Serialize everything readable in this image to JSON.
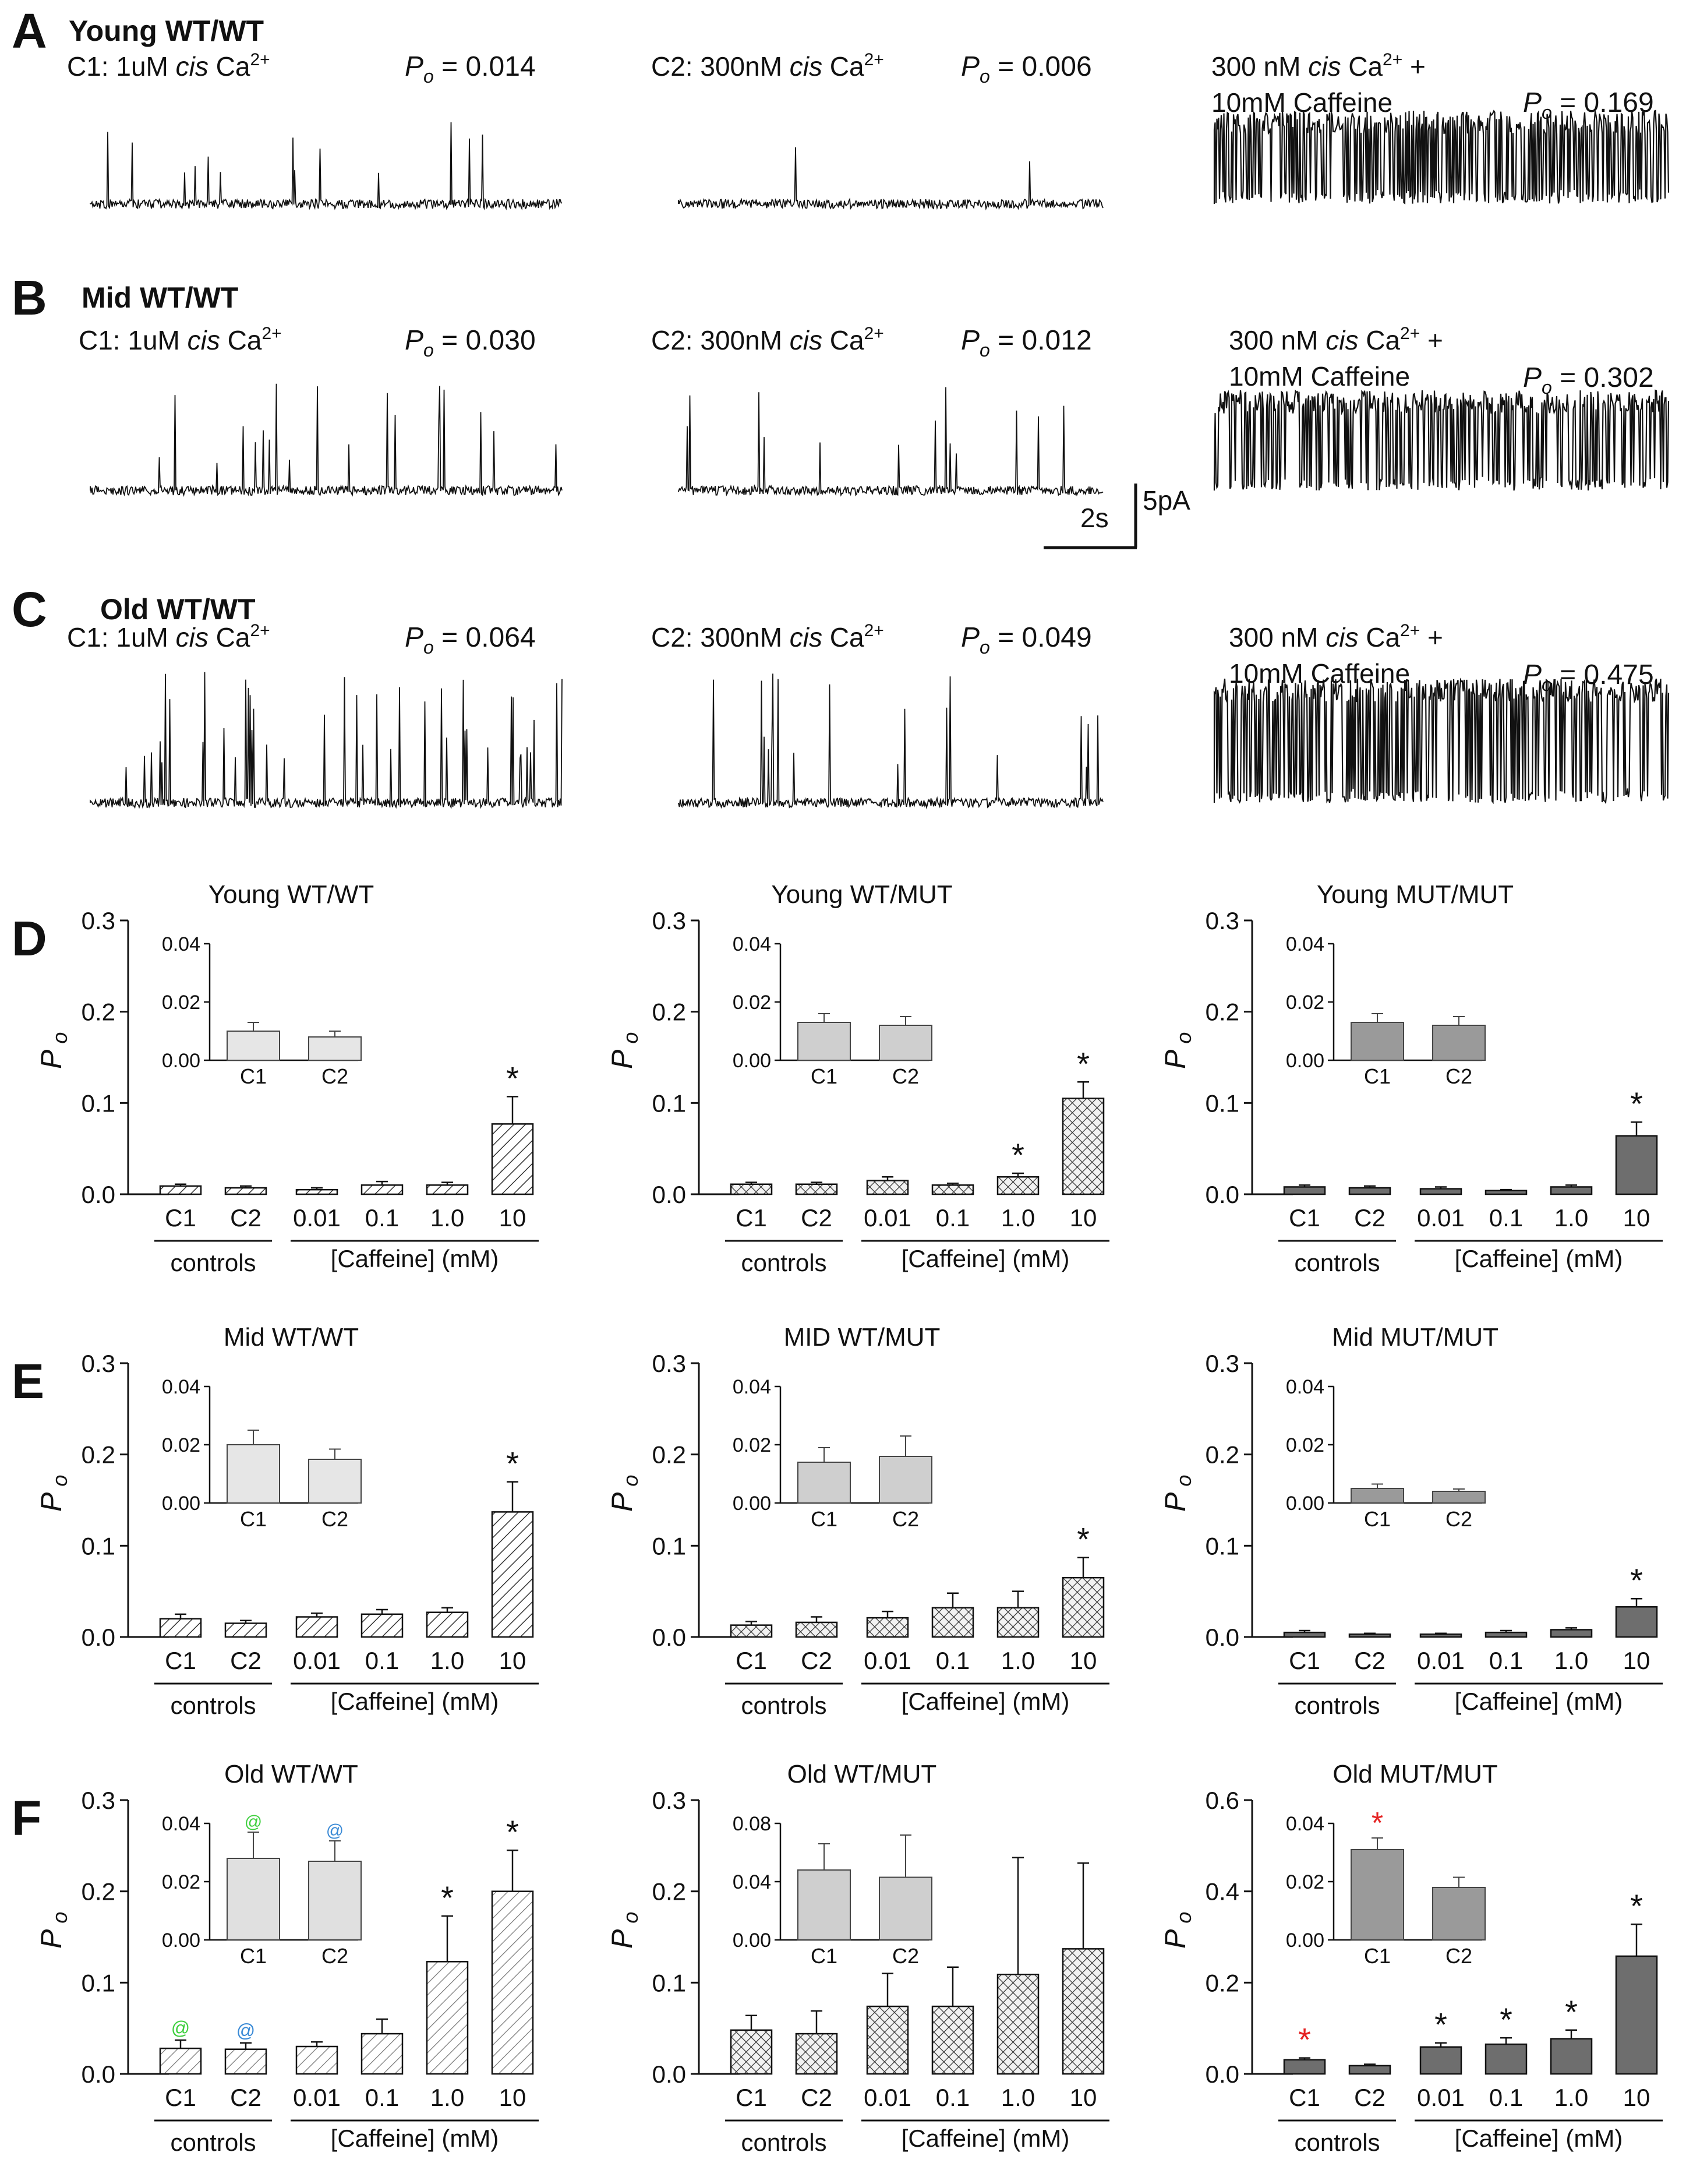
{
  "figure": {
    "trace_panels": [
      {
        "letter": "A",
        "title": "Young WT/WT",
        "segments": [
          {
            "label_lines": [
              [
                "C1: 1uM ",
                "cis",
                " Ca",
                "2+",
                ""
              ]
            ],
            "po_value": "0.014"
          },
          {
            "label_lines": [
              [
                "C2: 300nM ",
                "cis",
                " Ca",
                "2+",
                ""
              ]
            ],
            "po_value": "0.006"
          },
          {
            "label_lines": [
              [
                "300 nM ",
                "cis",
                " Ca",
                "2+",
                " +"
              ],
              [
                "10mM Caffeine",
                "",
                "",
                "",
                ""
              ]
            ],
            "po_value": "0.169"
          }
        ]
      },
      {
        "letter": "B",
        "title": "Mid WT/WT",
        "segments": [
          {
            "label_lines": [
              [
                "C1: 1uM ",
                "cis",
                " Ca",
                "2+",
                ""
              ]
            ],
            "po_value": "0.030"
          },
          {
            "label_lines": [
              [
                "C2: 300nM ",
                "cis",
                " Ca",
                "2+",
                ""
              ]
            ],
            "po_value": "0.012"
          },
          {
            "label_lines": [
              [
                "300 nM ",
                "cis",
                " Ca",
                "2+",
                " +"
              ],
              [
                "10mM Caffeine",
                "",
                "",
                "",
                ""
              ]
            ],
            "po_value": "0.302"
          }
        ]
      },
      {
        "letter": "C",
        "title": "Old WT/WT",
        "segments": [
          {
            "label_lines": [
              [
                "C1: 1uM ",
                "cis",
                " Ca",
                "2+",
                ""
              ]
            ],
            "po_value": "0.064"
          },
          {
            "label_lines": [
              [
                "C2: 300nM ",
                "cis",
                " Ca",
                "2+",
                ""
              ]
            ],
            "po_value": "0.049"
          },
          {
            "label_lines": [
              [
                "300 nM ",
                "cis",
                " Ca",
                "2+",
                " +"
              ],
              [
                "10mM Caffeine",
                "",
                "",
                "",
                ""
              ]
            ],
            "po_value": "0.475"
          }
        ]
      }
    ],
    "po_label": "P",
    "po_subscript": "o",
    "scale_bar": {
      "time": "2s",
      "current": "5pA"
    },
    "bar_panel_letters": [
      "D",
      "E",
      "F"
    ],
    "group_labels": {
      "controls": "controls",
      "caffeine": "[Caffeine]  (mM)"
    },
    "colors": {
      "ink": "#111111",
      "hatch_fill": "#ffffff",
      "solid_bar": "#6e6e6e",
      "light_bar": "#e0e0e0",
      "red_star": "#e52222",
      "green_at": "#3ecf3e",
      "blue_at": "#3a8ad6"
    }
  },
  "chart_data": [
    {
      "type": "bar",
      "title": "Young WT/WT",
      "ylabel": "P o",
      "pattern": "diagonal",
      "categories": [
        "C1",
        "C2",
        "0.01",
        "0.1",
        "1.0",
        "10"
      ],
      "values": [
        0.009,
        0.007,
        0.005,
        0.01,
        0.01,
        0.077
      ],
      "errors": [
        0.002,
        0.002,
        0.002,
        0.004,
        0.003,
        0.03
      ],
      "significant": [
        0,
        0,
        0,
        0,
        0,
        1
      ],
      "ylim": [
        0,
        0.3
      ],
      "yticks": [
        "0.0",
        "0.1",
        "0.2",
        "0.3"
      ],
      "inset": {
        "categories": [
          "C1",
          "C2"
        ],
        "values": [
          0.01,
          0.008
        ],
        "errors": [
          0.003,
          0.002
        ],
        "ylim": [
          0,
          0.04
        ],
        "yticks": [
          "0.00",
          "0.02",
          "0.04"
        ]
      }
    },
    {
      "type": "bar",
      "title": "Young WT/MUT",
      "ylabel": "P o",
      "pattern": "crosshatch",
      "categories": [
        "C1",
        "C2",
        "0.01",
        "0.1",
        "1.0",
        "10"
      ],
      "values": [
        0.011,
        0.011,
        0.015,
        0.01,
        0.019,
        0.105
      ],
      "errors": [
        0.002,
        0.002,
        0.004,
        0.002,
        0.004,
        0.018
      ],
      "significant": [
        0,
        0,
        0,
        0,
        1,
        1
      ],
      "ylim": [
        0,
        0.3
      ],
      "yticks": [
        "0.0",
        "0.1",
        "0.2",
        "0.3"
      ],
      "inset": {
        "categories": [
          "C1",
          "C2"
        ],
        "values": [
          0.013,
          0.012
        ],
        "errors": [
          0.003,
          0.003
        ],
        "ylim": [
          0,
          0.04
        ],
        "yticks": [
          "0.00",
          "0.02",
          "0.04"
        ]
      }
    },
    {
      "type": "bar",
      "title": "Young MUT/MUT",
      "ylabel": "P o",
      "pattern": "solid",
      "categories": [
        "C1",
        "C2",
        "0.01",
        "0.1",
        "1.0",
        "10"
      ],
      "values": [
        0.008,
        0.007,
        0.006,
        0.004,
        0.008,
        0.064
      ],
      "errors": [
        0.002,
        0.002,
        0.002,
        0.001,
        0.002,
        0.015
      ],
      "significant": [
        0,
        0,
        0,
        0,
        0,
        1
      ],
      "ylim": [
        0,
        0.3
      ],
      "yticks": [
        "0.0",
        "0.1",
        "0.2",
        "0.3"
      ],
      "inset": {
        "categories": [
          "C1",
          "C2"
        ],
        "values": [
          0.013,
          0.012
        ],
        "errors": [
          0.003,
          0.003
        ],
        "ylim": [
          0,
          0.04
        ],
        "yticks": [
          "0.00",
          "0.02",
          "0.04"
        ]
      }
    },
    {
      "type": "bar",
      "title": "Mid WT/WT",
      "ylabel": "P o",
      "pattern": "diagonal",
      "categories": [
        "C1",
        "C2",
        "0.01",
        "0.1",
        "1.0",
        "10"
      ],
      "values": [
        0.02,
        0.015,
        0.022,
        0.025,
        0.027,
        0.137
      ],
      "errors": [
        0.005,
        0.003,
        0.004,
        0.005,
        0.005,
        0.033
      ],
      "significant": [
        0,
        0,
        0,
        0,
        0,
        1
      ],
      "ylim": [
        0,
        0.3
      ],
      "yticks": [
        "0.0",
        "0.1",
        "0.2",
        "0.3"
      ],
      "inset": {
        "categories": [
          "C1",
          "C2"
        ],
        "values": [
          0.02,
          0.015
        ],
        "errors": [
          0.005,
          0.0035
        ],
        "ylim": [
          0,
          0.04
        ],
        "yticks": [
          "0.00",
          "0.02",
          "0.04"
        ]
      }
    },
    {
      "type": "bar",
      "title": "MID WT/MUT",
      "ylabel": "P o",
      "pattern": "crosshatch",
      "categories": [
        "C1",
        "C2",
        "0.01",
        "0.1",
        "1.0",
        "10"
      ],
      "values": [
        0.013,
        0.016,
        0.021,
        0.032,
        0.032,
        0.065
      ],
      "errors": [
        0.004,
        0.006,
        0.007,
        0.016,
        0.018,
        0.022
      ],
      "significant": [
        0,
        0,
        0,
        0,
        0,
        1
      ],
      "ylim": [
        0,
        0.3
      ],
      "yticks": [
        "0.0",
        "0.1",
        "0.2",
        "0.3"
      ],
      "inset": {
        "categories": [
          "C1",
          "C2"
        ],
        "values": [
          0.014,
          0.016
        ],
        "errors": [
          0.005,
          0.007
        ],
        "ylim": [
          0,
          0.04
        ],
        "yticks": [
          "0.00",
          "0.02",
          "0.04"
        ]
      }
    },
    {
      "type": "bar",
      "title": "Mid MUT/MUT",
      "ylabel": "P o",
      "pattern": "solid",
      "categories": [
        "C1",
        "C2",
        "0.01",
        "0.1",
        "1.0",
        "10"
      ],
      "values": [
        0.005,
        0.003,
        0.003,
        0.005,
        0.008,
        0.033
      ],
      "errors": [
        0.002,
        0.001,
        0.001,
        0.002,
        0.002,
        0.009
      ],
      "significant": [
        0,
        0,
        0,
        0,
        0,
        1
      ],
      "ylim": [
        0,
        0.3
      ],
      "yticks": [
        "0.0",
        "0.1",
        "0.2",
        "0.3"
      ],
      "inset": {
        "categories": [
          "C1",
          "C2"
        ],
        "values": [
          0.005,
          0.004
        ],
        "errors": [
          0.0015,
          0.0008
        ],
        "ylim": [
          0,
          0.04
        ],
        "yticks": [
          "0.00",
          "0.02",
          "0.04"
        ]
      }
    },
    {
      "type": "bar",
      "title": "Old WT/WT",
      "ylabel": "P o",
      "pattern": "diagonal_light",
      "categories": [
        "C1",
        "C2",
        "0.01",
        "0.1",
        "1.0",
        "10"
      ],
      "values": [
        0.028,
        0.027,
        0.03,
        0.044,
        0.123,
        0.2
      ],
      "errors": [
        0.009,
        0.007,
        0.005,
        0.016,
        0.05,
        0.045
      ],
      "significant": [
        0,
        0,
        0,
        0,
        1,
        1
      ],
      "marks": [
        "@",
        "@",
        "",
        "",
        "",
        ""
      ],
      "mark_colors": [
        "green_at",
        "blue_at",
        "",
        "",
        "",
        ""
      ],
      "ylim": [
        0,
        0.3
      ],
      "yticks": [
        "0.0",
        "0.1",
        "0.2",
        "0.3"
      ],
      "inset": {
        "categories": [
          "C1",
          "C2"
        ],
        "values": [
          0.028,
          0.027
        ],
        "errors": [
          0.009,
          0.007
        ],
        "marks": [
          "@",
          "@"
        ],
        "mark_colors": [
          "green_at",
          "blue_at"
        ],
        "ylim": [
          0,
          0.04
        ],
        "yticks": [
          "0.00",
          "0.02",
          "0.04"
        ]
      }
    },
    {
      "type": "bar",
      "title": "Old WT/MUT",
      "ylabel": "P o",
      "pattern": "crosshatch",
      "categories": [
        "C1",
        "C2",
        "0.01",
        "0.1",
        "1.0",
        "10"
      ],
      "values": [
        0.048,
        0.044,
        0.074,
        0.074,
        0.109,
        0.137
      ],
      "errors": [
        0.016,
        0.025,
        0.036,
        0.043,
        0.128,
        0.094
      ],
      "significant": [
        0,
        0,
        0,
        0,
        0,
        0
      ],
      "ylim": [
        0,
        0.3
      ],
      "yticks": [
        "0.0",
        "0.1",
        "0.2",
        "0.3"
      ],
      "inset": {
        "categories": [
          "C1",
          "C2"
        ],
        "values": [
          0.048,
          0.043
        ],
        "errors": [
          0.018,
          0.029
        ],
        "ylim": [
          0,
          0.08
        ],
        "yticks": [
          "0.00",
          "0.04",
          "0.08"
        ]
      }
    },
    {
      "type": "bar",
      "title": "Old MUT/MUT",
      "ylabel": "P o",
      "pattern": "solid",
      "categories": [
        "C1",
        "C2",
        "0.01",
        "0.1",
        "1.0",
        "10"
      ],
      "values": [
        0.031,
        0.018,
        0.059,
        0.065,
        0.077,
        0.258
      ],
      "errors": [
        0.004,
        0.003,
        0.009,
        0.014,
        0.019,
        0.07
      ],
      "significant": [
        1,
        0,
        1,
        1,
        1,
        1
      ],
      "sig_colors": [
        "red_star",
        "",
        "",
        "",
        "",
        ""
      ],
      "ylim": [
        0,
        0.6
      ],
      "yticks": [
        "0.0",
        "0.2",
        "0.4",
        "0.6"
      ],
      "inset": {
        "categories": [
          "C1",
          "C2"
        ],
        "values": [
          0.031,
          0.018
        ],
        "errors": [
          0.004,
          0.0035
        ],
        "significant": [
          1,
          0
        ],
        "sig_colors": [
          "red_star",
          ""
        ],
        "ylim": [
          0,
          0.04
        ],
        "yticks": [
          "0.00",
          "0.02",
          "0.04"
        ]
      }
    }
  ]
}
